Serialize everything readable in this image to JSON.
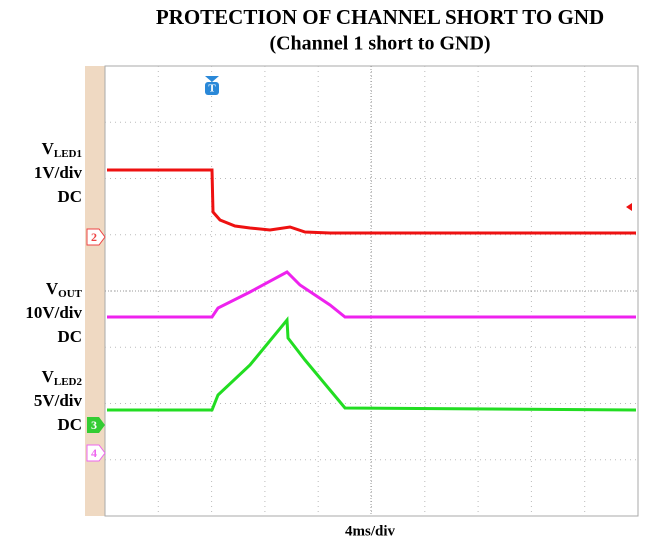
{
  "title": "PROTECTION OF CHANNEL SHORT TO GND",
  "subtitle": "(Channel 1 short to GND)",
  "channels": [
    {
      "symbol": "V",
      "subscript": "LED1",
      "scale": "1V/div",
      "coupling": "DC"
    },
    {
      "symbol": "V",
      "subscript": "OUT",
      "scale": "10V/div",
      "coupling": "DC"
    },
    {
      "symbol": "V",
      "subscript": "LED2",
      "scale": "5V/div",
      "coupling": "DC"
    }
  ],
  "markers": [
    "2",
    "3",
    "4"
  ],
  "trigger": "T",
  "timebase": "4ms/div"
}
